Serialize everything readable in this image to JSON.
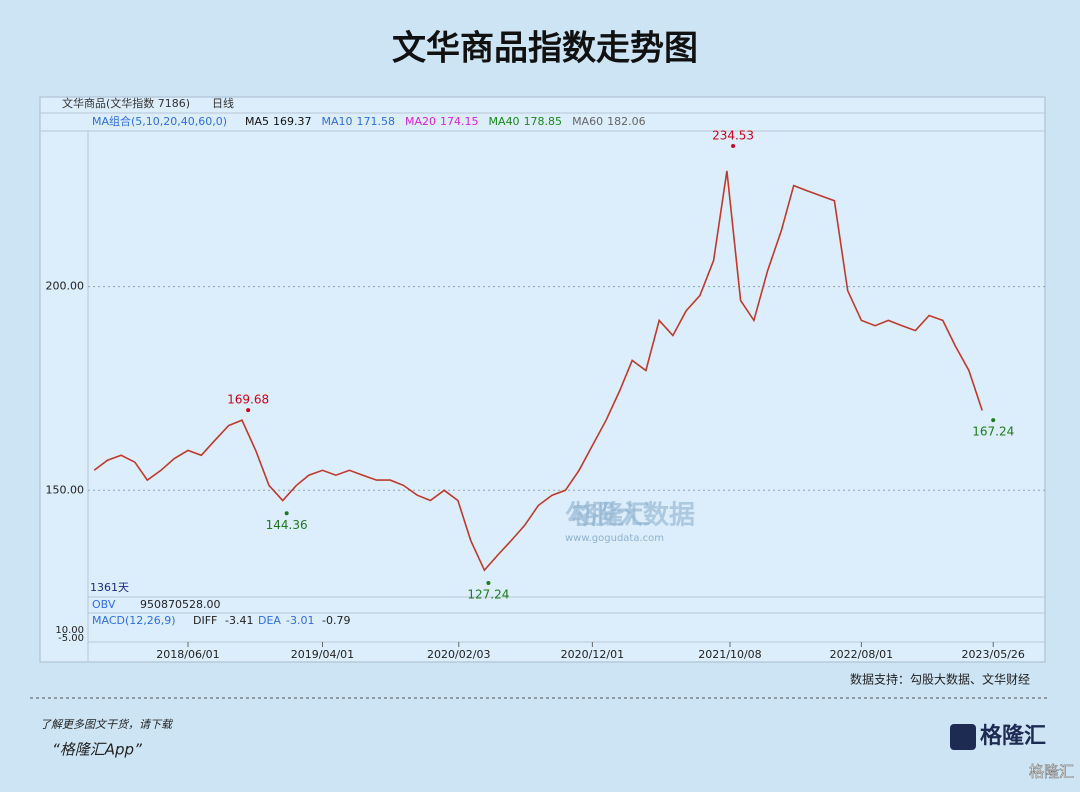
{
  "chart_data": {
    "type": "line",
    "title": "文华商品指数走势图",
    "instrument": "文华商品(文华指数 7186)",
    "period": "日线",
    "ma_group": "MA组合(5,10,20,40,60,0)",
    "ma_legend": [
      {
        "name": "MA5",
        "value": 169.37,
        "color": "#111111"
      },
      {
        "name": "MA10",
        "value": 171.58,
        "color": "#2f6fe0"
      },
      {
        "name": "MA20",
        "value": 174.15,
        "color": "#e020e0"
      },
      {
        "name": "MA40",
        "value": 178.85,
        "color": "#1a8a1a"
      },
      {
        "name": "MA60",
        "value": 182.06,
        "color": "#666666"
      }
    ],
    "days_label": "1361天",
    "obv": {
      "name": "OBV",
      "value": {
        "value": 950870528,
        "label": "950870528.00"
      }
    },
    "macd": {
      "name": "MACD(12,26,9)",
      "diff_name": "DIFF",
      "diff": -3.41,
      "dea_name": "DEA",
      "dea": -3.01,
      "macd": -0.79,
      "yticks": [
        {
          "value": 10,
          "label": "10.00"
        },
        {
          "value": -5,
          "label": "-5.00"
        }
      ]
    },
    "x": [
      "2017/11/01",
      "2017/12/01",
      "2018/01/01",
      "2018/02/01",
      "2018/03/01",
      "2018/04/01",
      "2018/05/01",
      "2018/06/01",
      "2018/07/01",
      "2018/08/01",
      "2018/09/01",
      "2018/10/01",
      "2018/11/01",
      "2018/12/01",
      "2019/01/01",
      "2019/02/01",
      "2019/03/01",
      "2019/04/01",
      "2019/05/01",
      "2019/06/01",
      "2019/07/01",
      "2019/08/01",
      "2019/09/01",
      "2019/10/01",
      "2019/11/01",
      "2019/12/01",
      "2020/01/01",
      "2020/02/01",
      "2020/03/01",
      "2020/04/01",
      "2020/05/01",
      "2020/06/01",
      "2020/07/01",
      "2020/08/01",
      "2020/09/01",
      "2020/10/01",
      "2020/11/01",
      "2020/12/01",
      "2021/01/01",
      "2021/02/01",
      "2021/03/01",
      "2021/04/01",
      "2021/05/01",
      "2021/06/01",
      "2021/07/01",
      "2021/08/01",
      "2021/09/01",
      "2021/10/01",
      "2021/11/01",
      "2021/12/01",
      "2022/01/01",
      "2022/02/01",
      "2022/03/01",
      "2022/04/01",
      "2022/05/01",
      "2022/06/01",
      "2022/07/01",
      "2022/08/01",
      "2022/09/01",
      "2022/10/01",
      "2022/11/01",
      "2022/12/01",
      "2023/01/01",
      "2023/02/01",
      "2023/03/01",
      "2023/04/01",
      "2023/05/01"
    ],
    "series": [
      {
        "name": "文华商品",
        "color": "#c0392b",
        "values": [
          154.9,
          157.4,
          158.6,
          156.9,
          152.5,
          154.9,
          157.8,
          159.8,
          158.6,
          162.3,
          165.9,
          167.2,
          159.8,
          151.2,
          147.5,
          151.2,
          153.7,
          154.9,
          153.7,
          154.9,
          153.7,
          152.5,
          152.5,
          151.2,
          148.8,
          147.5,
          150,
          147.5,
          137.7,
          130.4,
          134.1,
          137.7,
          141.4,
          146.3,
          148.8,
          150,
          154.9,
          161,
          167.2,
          174.5,
          181.9,
          179.4,
          191.7,
          188,
          194.1,
          197.8,
          206.4,
          228.4,
          196.6,
          191.7,
          203.9,
          213.7,
          224.8,
          223.5,
          222.3,
          221.1,
          199,
          191.7,
          190.4,
          191.7,
          190.4,
          189.2,
          192.9,
          191.7,
          185.5,
          179.4,
          169.6
        ]
      }
    ],
    "annotations": [
      {
        "x": "2018/10/15",
        "value": 169.68,
        "color": "#d0021b"
      },
      {
        "x": "2019/01/10",
        "value": 144.36,
        "color": "#1e7b1e"
      },
      {
        "x": "2020/04/10",
        "value": 127.24,
        "color": "#1e7b1e"
      },
      {
        "x": "2021/10/15",
        "value": 234.53,
        "color": "#d0021b"
      },
      {
        "x": "2023/05/26",
        "value": 167.24,
        "color": "#1e7b1e"
      }
    ],
    "xlim": [
      "2017/10/18",
      "2023/05/30"
    ],
    "xticks": [
      "2018/06/01",
      "2019/04/01",
      "2020/02/03",
      "2020/12/01",
      "2021/10/08",
      "2022/08/01",
      "2023/05/26"
    ],
    "ylim": [
      124.3,
      238.2
    ],
    "yticks": [
      {
        "value": 200,
        "label": "200.00"
      },
      {
        "value": 150,
        "label": "150.00"
      }
    ],
    "grid": true,
    "watermark": {
      "brand": "格隆汇",
      "name": "勾股大数据",
      "url": "www.gogudata.com"
    },
    "source": "数据支持：勾股大数据、文华财经",
    "promo": "了解更多图文干货，请下载",
    "app": "“格隆汇App”",
    "logo": "格隆汇",
    "corner_logo": "格隆汇"
  }
}
